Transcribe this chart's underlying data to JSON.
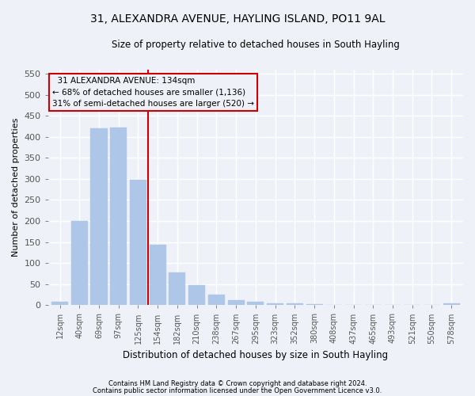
{
  "title1": "31, ALEXANDRA AVENUE, HAYLING ISLAND, PO11 9AL",
  "title2": "Size of property relative to detached houses in South Hayling",
  "xlabel": "Distribution of detached houses by size in South Hayling",
  "ylabel": "Number of detached properties",
  "categories": [
    "12sqm",
    "40sqm",
    "69sqm",
    "97sqm",
    "125sqm",
    "154sqm",
    "182sqm",
    "210sqm",
    "238sqm",
    "267sqm",
    "295sqm",
    "323sqm",
    "352sqm",
    "380sqm",
    "408sqm",
    "437sqm",
    "465sqm",
    "493sqm",
    "521sqm",
    "550sqm",
    "578sqm"
  ],
  "values": [
    8,
    200,
    420,
    422,
    298,
    143,
    78,
    47,
    25,
    12,
    8,
    5,
    5,
    2,
    1,
    0,
    0,
    0,
    0,
    0,
    4
  ],
  "bar_color": "#aec6e8",
  "bar_edgecolor": "#aec6e8",
  "vline_x": 4.5,
  "vline_color": "#cc0000",
  "annotation_title": "31 ALEXANDRA AVENUE: 134sqm",
  "annotation_line1": "← 68% of detached houses are smaller (1,136)",
  "annotation_line2": "31% of semi-detached houses are larger (520) →",
  "box_edgecolor": "#cc0000",
  "ylim": [
    0,
    560
  ],
  "yticks": [
    0,
    50,
    100,
    150,
    200,
    250,
    300,
    350,
    400,
    450,
    500,
    550
  ],
  "footer1": "Contains HM Land Registry data © Crown copyright and database right 2024.",
  "footer2": "Contains public sector information licensed under the Open Government Licence v3.0.",
  "bg_color": "#eef2f8",
  "grid_color": "#ffffff"
}
